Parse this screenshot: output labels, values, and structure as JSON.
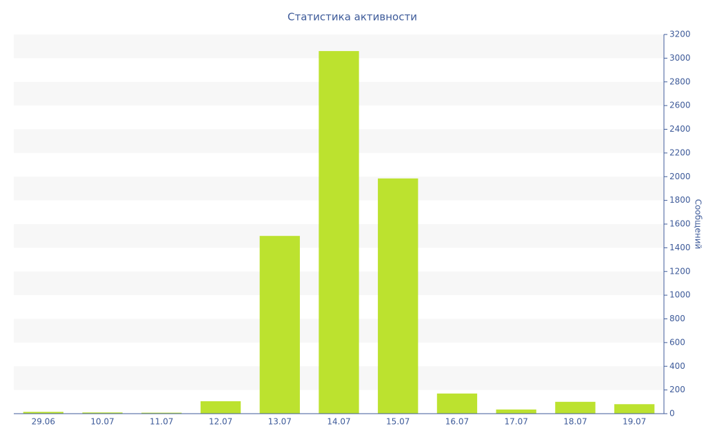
{
  "chart_data": {
    "type": "bar",
    "title": "Статистика активности",
    "y_axis_label": "Сообщений",
    "categories": [
      "29.06",
      "10.07",
      "11.07",
      "12.07",
      "13.07",
      "14.07",
      "15.07",
      "16.07",
      "17.07",
      "18.07",
      "19.07"
    ],
    "values": [
      15,
      10,
      8,
      105,
      1500,
      3060,
      1985,
      170,
      35,
      100,
      80
    ],
    "color": "#bce22f",
    "ylim": [
      0,
      3200
    ],
    "yticks": [
      0,
      200,
      400,
      600,
      800,
      1000,
      1200,
      1400,
      1600,
      1800,
      2000,
      2200,
      2400,
      2600,
      2800,
      3000,
      3200
    ],
    "y_axis_side": "right",
    "banded_grid": true
  }
}
